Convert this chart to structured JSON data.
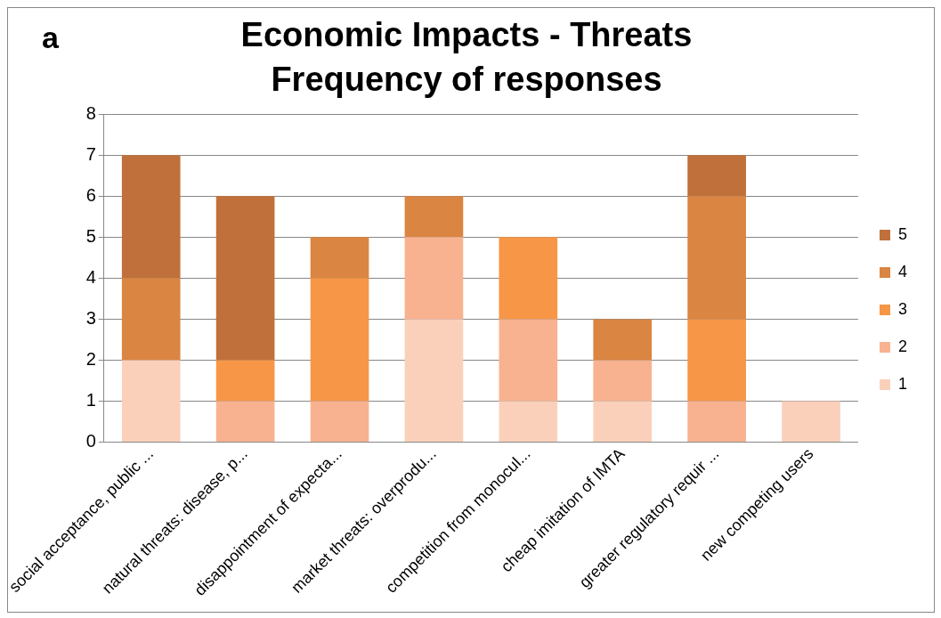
{
  "chart_data": {
    "type": "bar",
    "title": "Economic Impacts - Threats",
    "subtitle": "Frequency of responses",
    "annotations": [
      "a"
    ],
    "categories": [
      "social acceptance, public ...",
      "natural threats: disease, p...",
      "disappointment of expecta...",
      "market threats: overprodu...",
      "competition from monocul...",
      "cheap imitation of IMTA",
      "greater regulatory requir ...",
      "new competing users"
    ],
    "stacked": true,
    "ylim": [
      0,
      8
    ],
    "yticks": [
      0,
      1,
      2,
      3,
      4,
      5,
      6,
      7,
      8
    ],
    "grid": "y",
    "legend": "right",
    "series": [
      {
        "name": "1",
        "color": "#fbd0bb",
        "values": [
          2,
          0,
          0,
          3,
          1,
          1,
          0,
          1
        ]
      },
      {
        "name": "2",
        "color": "#f8b290",
        "values": [
          0,
          1,
          1,
          2,
          2,
          1,
          1,
          0
        ]
      },
      {
        "name": "3",
        "color": "#f79646",
        "values": [
          0,
          1,
          3,
          0,
          2,
          0,
          2,
          0
        ]
      },
      {
        "name": "4",
        "color": "#da8542",
        "values": [
          2,
          0,
          1,
          1,
          0,
          1,
          3,
          0
        ]
      },
      {
        "name": "5",
        "color": "#c0703a",
        "values": [
          3,
          4,
          0,
          0,
          0,
          0,
          1,
          0
        ]
      }
    ]
  }
}
